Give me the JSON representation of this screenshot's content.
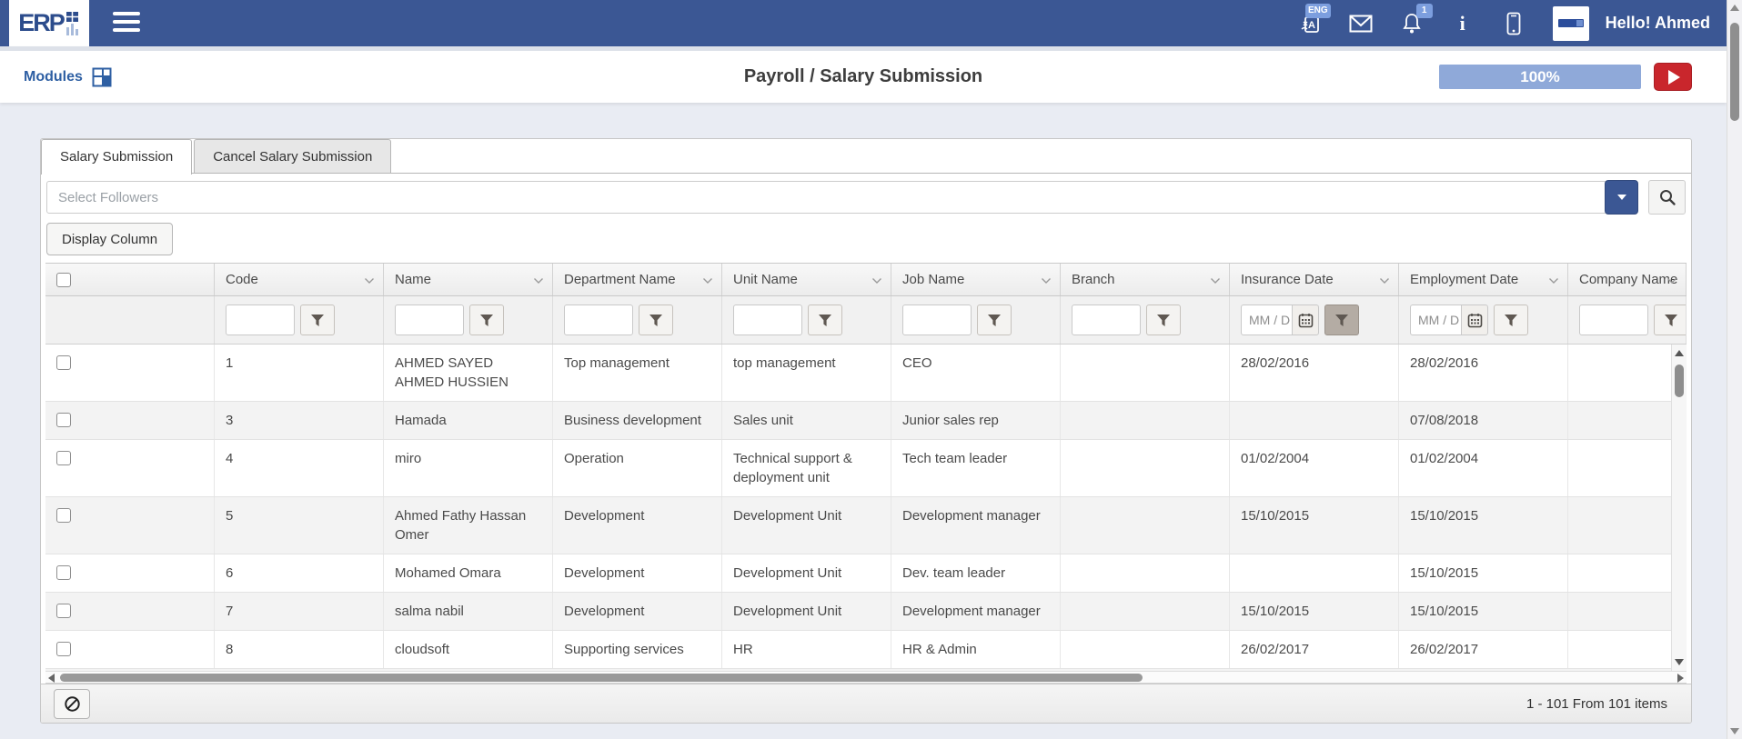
{
  "brand": {
    "logo_text": "ERP"
  },
  "header": {
    "greeting": "Hello! Ahmed",
    "language_badge": "ENG",
    "notification_count": "1",
    "icons": [
      "translate-icon",
      "mail-icon",
      "bell-icon",
      "info-icon",
      "mobile-icon"
    ]
  },
  "toolbar": {
    "modules_label": "Modules",
    "page_title": "Payroll / Salary Submission",
    "progress_value": "100%"
  },
  "tabs": [
    {
      "label": "Salary Submission",
      "active": true
    },
    {
      "label": "Cancel Salary Submission",
      "active": false
    }
  ],
  "followers": {
    "placeholder": "Select Followers"
  },
  "controls": {
    "display_column_label": "Display Column"
  },
  "table": {
    "date_placeholder": "MM / DD",
    "columns": [
      {
        "label": "Code",
        "filter": "text"
      },
      {
        "label": "Name",
        "filter": "text"
      },
      {
        "label": "Department Name",
        "filter": "text"
      },
      {
        "label": "Unit Name",
        "filter": "text"
      },
      {
        "label": "Job Name",
        "filter": "text"
      },
      {
        "label": "Branch",
        "filter": "text"
      },
      {
        "label": "Insurance Date",
        "filter": "date",
        "filter_active": true
      },
      {
        "label": "Employment Date",
        "filter": "date",
        "filter_active": false
      },
      {
        "label": "Company Name",
        "filter": "text"
      }
    ],
    "rows": [
      {
        "code": "1",
        "name": "AHMED SAYED AHMED HUSSIEN",
        "department": "Top management",
        "unit": "top management",
        "job": "CEO",
        "branch": "",
        "insurance_date": "28/02/2016",
        "employment_date": "28/02/2016",
        "company": ""
      },
      {
        "code": "3",
        "name": "Hamada",
        "department": "Business development",
        "unit": "Sales unit",
        "job": "Junior sales rep",
        "branch": "",
        "insurance_date": "",
        "employment_date": "07/08/2018",
        "company": ""
      },
      {
        "code": "4",
        "name": "miro",
        "department": "Operation",
        "unit": "Technical support & deployment unit",
        "job": "Tech team leader",
        "branch": "",
        "insurance_date": "01/02/2004",
        "employment_date": "01/02/2004",
        "company": ""
      },
      {
        "code": "5",
        "name": "Ahmed Fathy Hassan Omer",
        "department": "Development",
        "unit": "Development Unit",
        "job": "Development manager",
        "branch": "",
        "insurance_date": "15/10/2015",
        "employment_date": "15/10/2015",
        "company": ""
      },
      {
        "code": "6",
        "name": "Mohamed Omara",
        "department": "Development",
        "unit": "Development Unit",
        "job": "Dev. team leader",
        "branch": "",
        "insurance_date": "",
        "employment_date": "15/10/2015",
        "company": ""
      },
      {
        "code": "7",
        "name": "salma nabil",
        "department": "Development",
        "unit": "Development Unit",
        "job": "Development manager",
        "branch": "",
        "insurance_date": "15/10/2015",
        "employment_date": "15/10/2015",
        "company": ""
      },
      {
        "code": "8",
        "name": "cloudsoft",
        "department": "Supporting services",
        "unit": "HR",
        "job": "HR & Admin",
        "branch": "",
        "insurance_date": "26/02/2017",
        "employment_date": "26/02/2017",
        "company": ""
      }
    ]
  },
  "footer": {
    "items_label": "1 - 101 From 101 items"
  },
  "colors": {
    "navbar": "#3b5794",
    "progress_bar": "#8fa9d9",
    "play_button": "#c9262c",
    "accent_blue": "#2e5fa3"
  }
}
